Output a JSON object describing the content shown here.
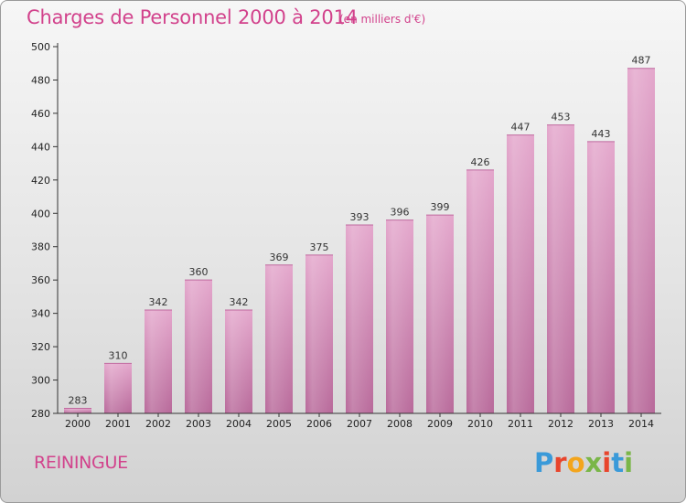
{
  "header": {
    "title": "Charges de Personnel 2000 à 2014",
    "subtitle": "(en milliers d'€)"
  },
  "footer": {
    "commune": "REININGUE",
    "logo_letters": [
      "P",
      "r",
      "o",
      "x",
      "i",
      "t",
      "i"
    ],
    "logo_colors": [
      "#3a9ad9",
      "#e8452c",
      "#f3a51d",
      "#7ab648",
      "#e8452c",
      "#3a9ad9",
      "#7ab648"
    ]
  },
  "chart_data": {
    "type": "bar",
    "title": "Charges de Personnel 2000 à 2014",
    "subtitle": "(en milliers d'€)",
    "xlabel": "",
    "ylabel": "",
    "ylim": [
      280,
      500
    ],
    "yticks": [
      280,
      300,
      320,
      340,
      360,
      380,
      400,
      420,
      440,
      460,
      480,
      500
    ],
    "grid": false,
    "categories": [
      "2000",
      "2001",
      "2002",
      "2003",
      "2004",
      "2005",
      "2006",
      "2007",
      "2008",
      "2009",
      "2010",
      "2011",
      "2012",
      "2013",
      "2014"
    ],
    "values": [
      283,
      310,
      342,
      360,
      342,
      369,
      375,
      393,
      396,
      399,
      426,
      447,
      453,
      443,
      487
    ],
    "bar_color": "#d98ab8",
    "bar_color_dark": "#b25a8e"
  }
}
